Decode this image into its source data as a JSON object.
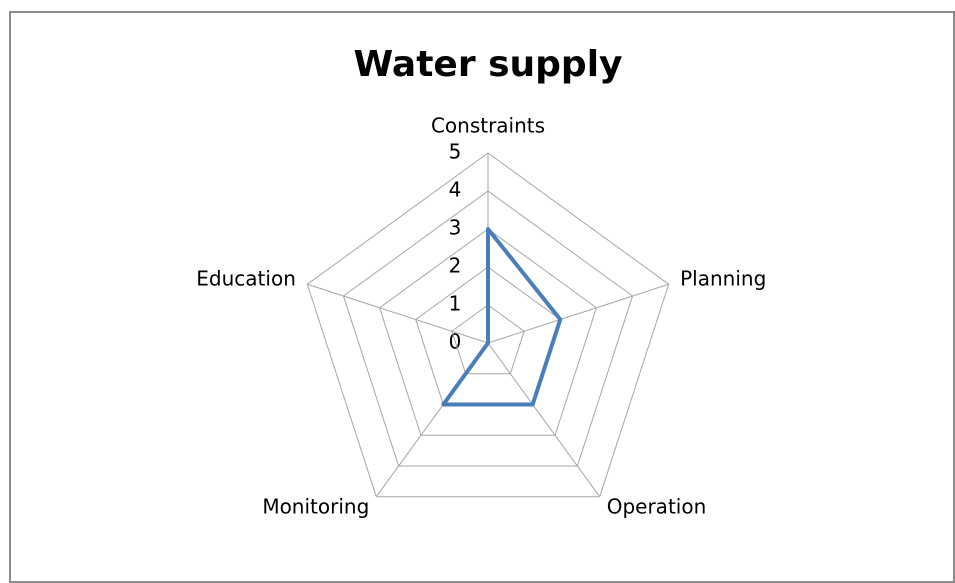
{
  "chart_data": {
    "type": "radar",
    "title": "Water supply",
    "categories": [
      "Constraints",
      "Planning",
      "Operation",
      "Monitoring",
      "Education"
    ],
    "series": [
      {
        "name": "Water supply",
        "color": "#4a7ebb",
        "values": [
          3,
          2,
          2,
          2,
          0
        ]
      }
    ],
    "ylim": [
      0,
      5
    ],
    "yticks": [
      0,
      1,
      2,
      3,
      4,
      5
    ],
    "grid": true,
    "legend": false
  }
}
